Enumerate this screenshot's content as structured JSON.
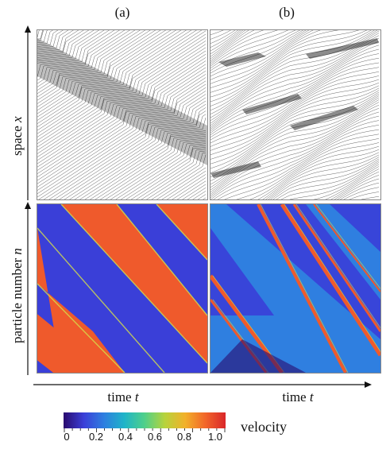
{
  "panels": {
    "a_label": "(a)",
    "b_label": "(b)"
  },
  "axes": {
    "y_top_text": "space ",
    "y_top_var": "x",
    "y_bottom_text": "particle number ",
    "y_bottom_var": "n",
    "x_left_text": "time ",
    "x_left_var": "t",
    "x_right_text": "time ",
    "x_right_var": "t"
  },
  "colorbar": {
    "label": "velocity",
    "ticks": [
      "0",
      "0.2",
      "0.4",
      "0.6",
      "0.8",
      "1.0"
    ],
    "colors": [
      "#2a0a6e",
      "#3a3fd8",
      "#2e7fe0",
      "#1fb4c8",
      "#4fd08a",
      "#b7d33c",
      "#f2b12a",
      "#f2662a",
      "#d9262a"
    ]
  },
  "colors": {
    "slow": "#3a3fd8",
    "fast": "#ef5a2c",
    "trajectory_line": "#222222",
    "frame": "#888888"
  }
}
